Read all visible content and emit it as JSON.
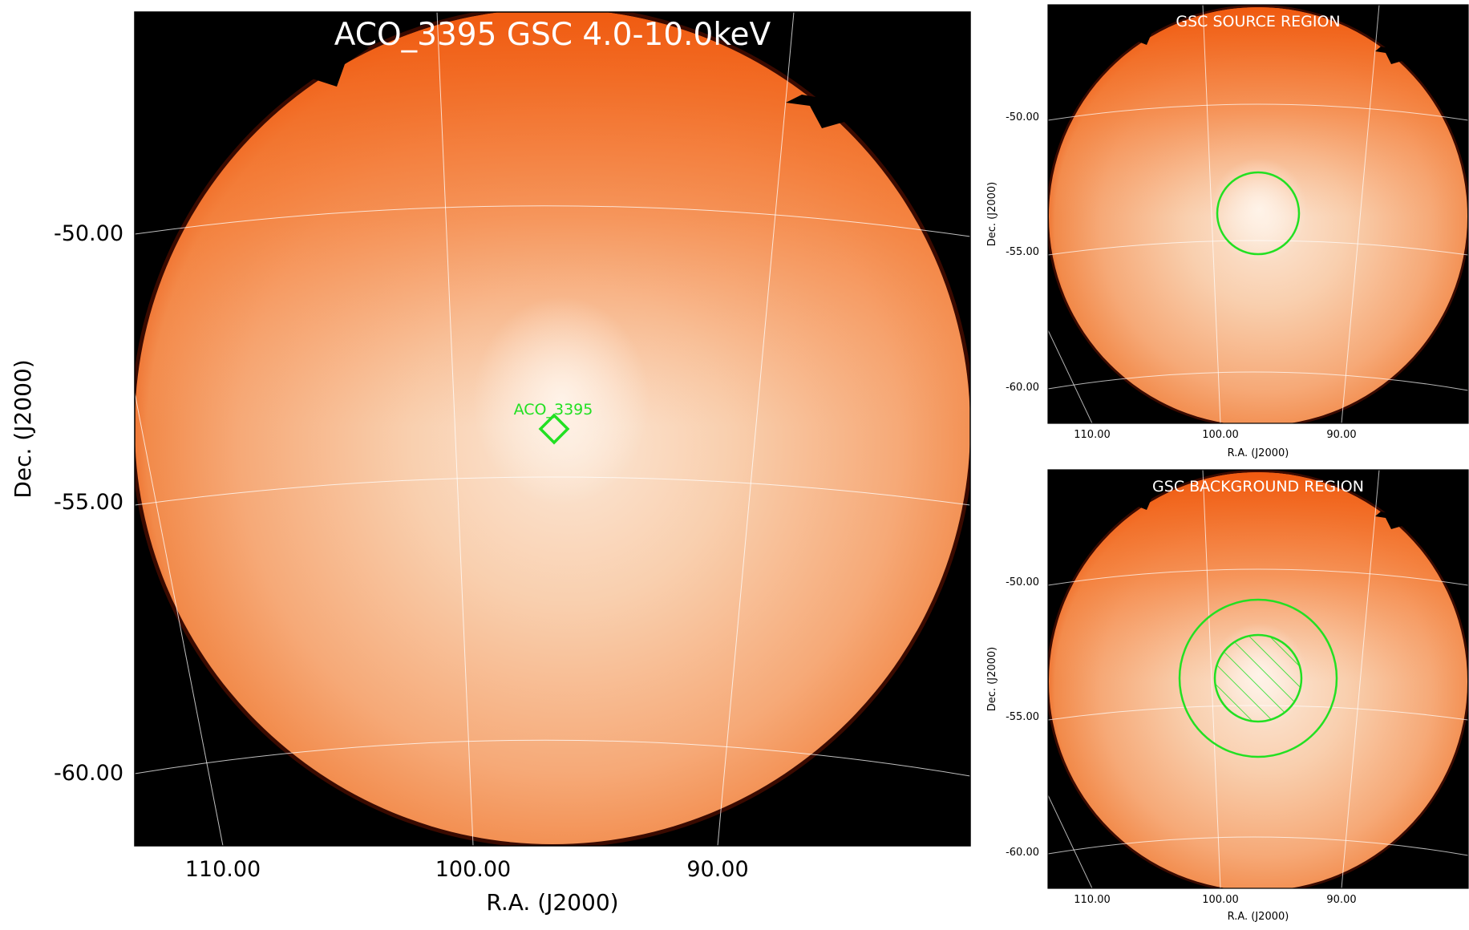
{
  "main_panel": {
    "title": "ACO_3395 GSC 4.0-10.0keV",
    "source_label": "ACO_3395",
    "xlabel": "R.A. (J2000)",
    "ylabel": "Dec. (J2000)",
    "ra_ticks": [
      "110.00",
      "100.00",
      "90.00"
    ],
    "dec_ticks": [
      "-50.00",
      "-55.00",
      "-60.00"
    ]
  },
  "source_panel": {
    "title": "GSC SOURCE REGION",
    "xlabel": "R.A. (J2000)",
    "ylabel": "Dec. (J2000)",
    "ra_ticks": [
      "110.00",
      "100.00",
      "90.00"
    ],
    "dec_ticks": [
      "-50.00",
      "-55.00",
      "-60.00"
    ]
  },
  "background_panel": {
    "title": "GSC BACKGROUND REGION",
    "xlabel": "R.A. (J2000)",
    "ylabel": "Dec. (J2000)",
    "ra_ticks": [
      "110.00",
      "100.00",
      "90.00"
    ],
    "dec_ticks": [
      "-50.00",
      "-55.00",
      "-60.00"
    ]
  },
  "colors": {
    "field_edge": "#e8500a",
    "field_center": "#fbe3cf",
    "region": "#22e022",
    "grid": "#ffffff",
    "background": "#000000"
  }
}
